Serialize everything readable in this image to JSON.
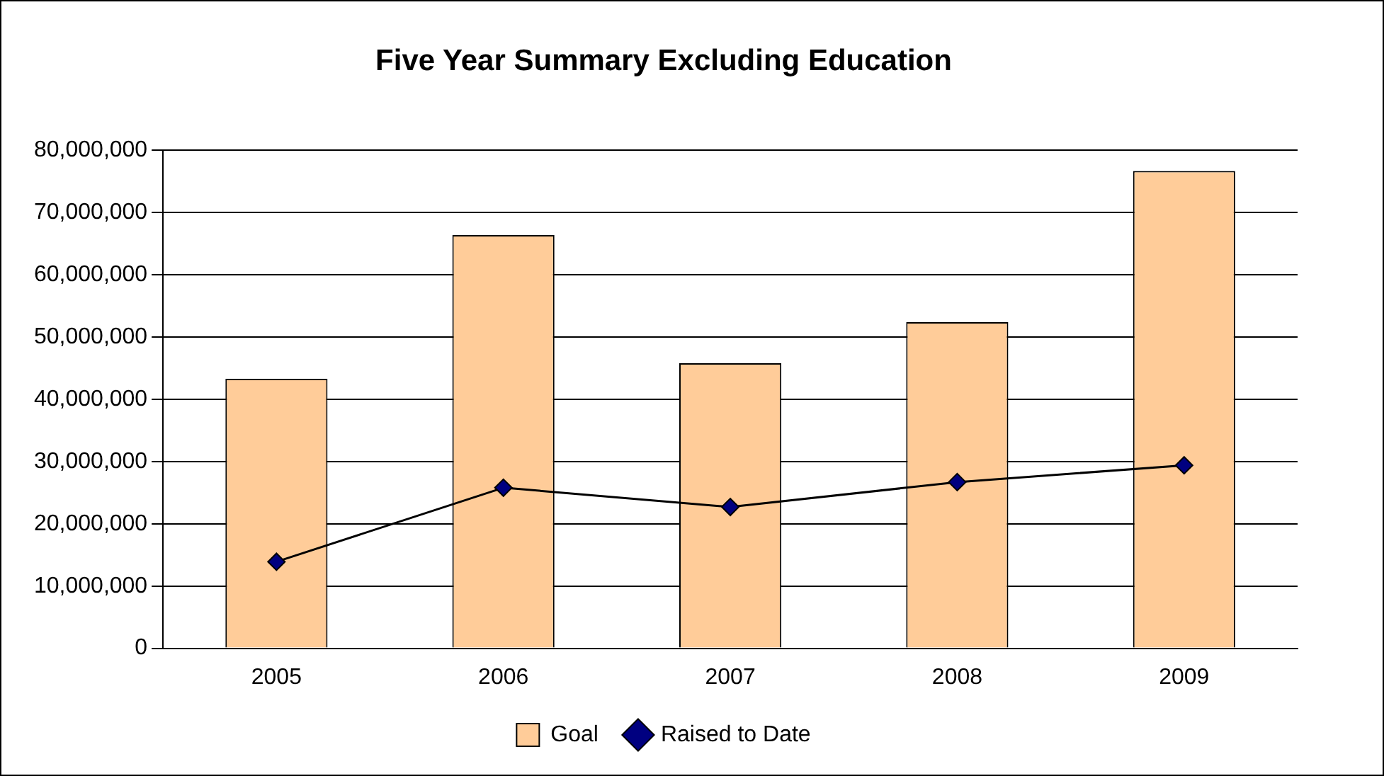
{
  "chart_data": {
    "type": "bar",
    "title": "Five Year Summary Excluding Education",
    "categories": [
      "2005",
      "2006",
      "2007",
      "2008",
      "2009"
    ],
    "series": [
      {
        "name": "Goal",
        "color": "#ffcc99",
        "values": [
          43300000,
          66400000,
          45800000,
          52400000,
          76700000
        ]
      },
      {
        "name": "Raised to Date",
        "type": "line",
        "color": "#000080",
        "values": [
          13900000,
          25800000,
          22700000,
          26700000,
          29400000
        ],
        "marker": "diamond",
        "line_style": "solid"
      }
    ],
    "ylim": [
      0,
      80000000
    ],
    "yticks": [
      {
        "value": 0,
        "label": "0"
      },
      {
        "value": 10000000,
        "label": "10,000,000"
      },
      {
        "value": 20000000,
        "label": "20,000,000"
      },
      {
        "value": 30000000,
        "label": "30,000,000"
      },
      {
        "value": 40000000,
        "label": "40,000,000"
      },
      {
        "value": 50000000,
        "label": "50,000,000"
      },
      {
        "value": 60000000,
        "label": "60,000,000"
      },
      {
        "value": 70000000,
        "label": "70,000,000"
      },
      {
        "value": 80000000,
        "label": "80,000,000"
      }
    ],
    "grid": "y",
    "legend": "bottom"
  }
}
